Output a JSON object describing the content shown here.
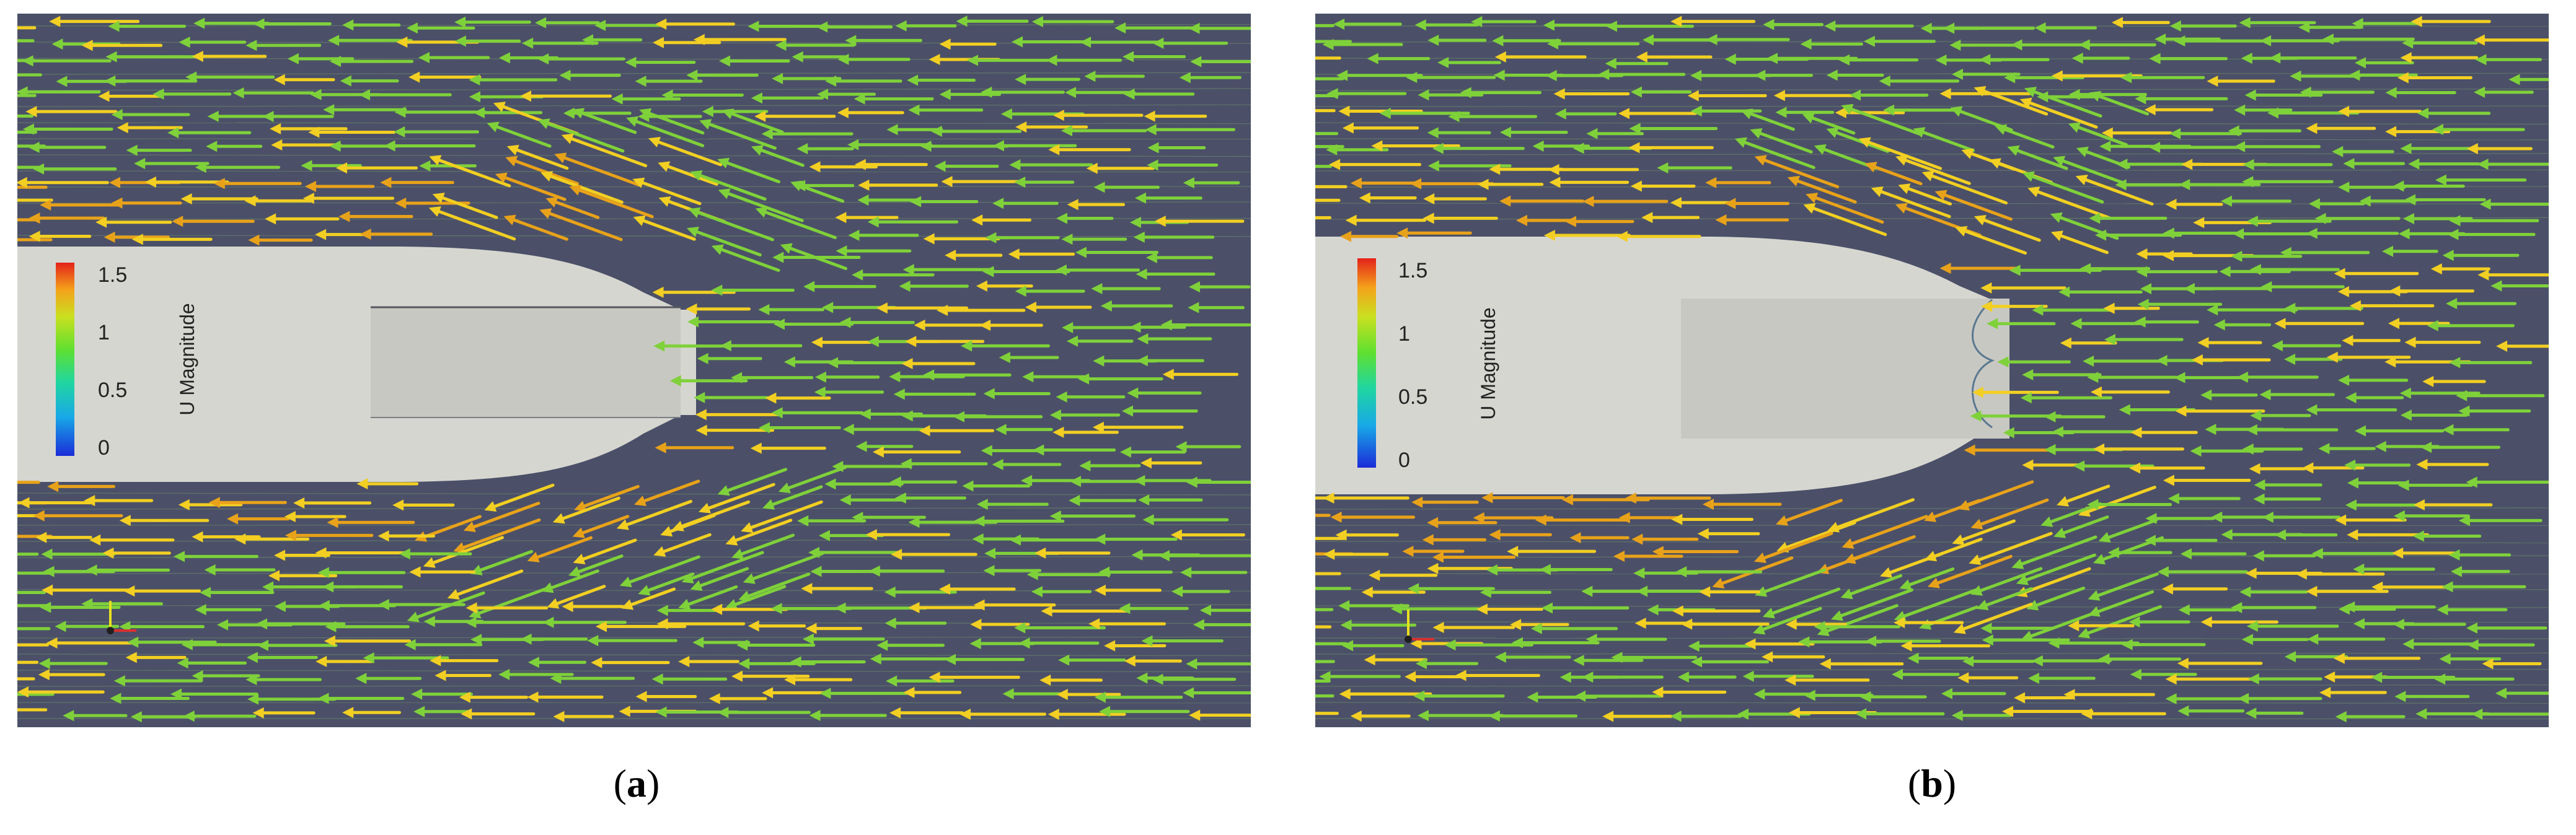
{
  "panels": [
    {
      "id": "a",
      "label": "a",
      "colorbar": {
        "title": "U Magnitude",
        "ticks": [
          "1.5",
          "1",
          "0.5",
          "0"
        ],
        "range": [
          0,
          1.5
        ]
      }
    },
    {
      "id": "b",
      "label": "b",
      "colorbar": {
        "title": "U Magnitude",
        "ticks": [
          "1.5",
          "1",
          "0.5",
          "0"
        ],
        "range": [
          0,
          1.5
        ]
      }
    }
  ],
  "colors": {
    "background": "#4b5068",
    "body": "#d6d6d0",
    "arrow_low": "#7fd13a",
    "arrow_high": "#f2cf22",
    "arrow_fast": "#e8a21a"
  }
}
